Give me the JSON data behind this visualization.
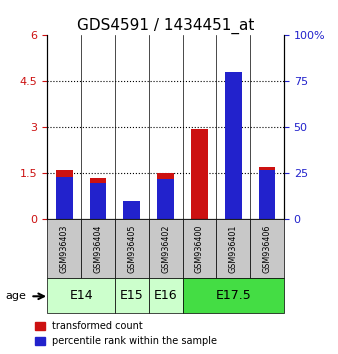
{
  "title": "GDS4591 / 1434451_at",
  "samples": [
    "GSM936403",
    "GSM936404",
    "GSM936405",
    "GSM936402",
    "GSM936400",
    "GSM936401",
    "GSM936406"
  ],
  "transformed_count": [
    1.62,
    1.35,
    0.28,
    1.52,
    2.95,
    4.75,
    1.72
  ],
  "percentile_rank": [
    23,
    20,
    10,
    22,
    0,
    80,
    27
  ],
  "age_groups": [
    {
      "label": "E14",
      "samples": [
        0,
        1
      ],
      "color": "#ccffcc"
    },
    {
      "label": "E15",
      "samples": [
        2
      ],
      "color": "#ccffcc"
    },
    {
      "label": "E16",
      "samples": [
        3
      ],
      "color": "#ccffcc"
    },
    {
      "label": "E17.5",
      "samples": [
        4,
        5,
        6
      ],
      "color": "#44dd44"
    }
  ],
  "left_yticks": [
    0,
    1.5,
    3.0,
    4.5,
    6.0
  ],
  "left_yticklabels": [
    "0",
    "1.5",
    "3",
    "4.5",
    "6"
  ],
  "right_yticks": [
    0,
    25,
    50,
    75,
    100
  ],
  "right_yticklabels": [
    "0",
    "25",
    "50",
    "75",
    "100%"
  ],
  "ylim": [
    0,
    6
  ],
  "right_ylim": [
    0,
    100
  ],
  "bar_color_red": "#cc1111",
  "bar_color_blue": "#2222cc",
  "bar_width": 0.5,
  "bg_color_samples": "#c8c8c8",
  "bg_color_white": "#ffffff",
  "title_fontsize": 11,
  "tick_fontsize": 8,
  "age_label_fontsize": 9,
  "legend_fontsize": 7
}
